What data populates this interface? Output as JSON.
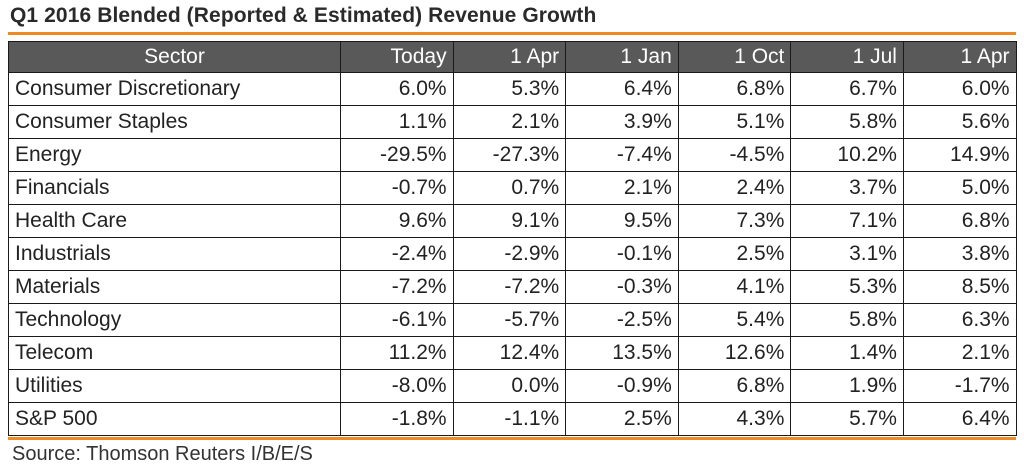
{
  "title": "Q1 2016 Blended (Reported & Estimated) Revenue Growth",
  "source": "Source: Thomson Reuters I/B/E/S",
  "colors": {
    "accent": "#f08a24",
    "header_bg": "#595959",
    "header_text": "#ffffff"
  },
  "chart_data": {
    "type": "table",
    "title": "Q1 2016 Blended (Reported & Estimated) Revenue Growth",
    "columns": [
      "Sector",
      "Today",
      "1 Apr",
      "1 Jan",
      "1 Oct",
      "1 Jul",
      "1 Apr"
    ],
    "rows": [
      [
        "Consumer Discretionary",
        "6.0%",
        "5.3%",
        "6.4%",
        "6.8%",
        "6.7%",
        "6.0%"
      ],
      [
        "Consumer Staples",
        "1.1%",
        "2.1%",
        "3.9%",
        "5.1%",
        "5.8%",
        "5.6%"
      ],
      [
        "Energy",
        "-29.5%",
        "-27.3%",
        "-7.4%",
        "-4.5%",
        "10.2%",
        "14.9%"
      ],
      [
        "Financials",
        "-0.7%",
        "0.7%",
        "2.1%",
        "2.4%",
        "3.7%",
        "5.0%"
      ],
      [
        "Health Care",
        "9.6%",
        "9.1%",
        "9.5%",
        "7.3%",
        "7.1%",
        "6.8%"
      ],
      [
        "Industrials",
        "-2.4%",
        "-2.9%",
        "-0.1%",
        "2.5%",
        "3.1%",
        "3.8%"
      ],
      [
        "Materials",
        "-7.2%",
        "-7.2%",
        "-0.3%",
        "4.1%",
        "5.3%",
        "8.5%"
      ],
      [
        "Technology",
        "-6.1%",
        "-5.7%",
        "-2.5%",
        "5.4%",
        "5.8%",
        "6.3%"
      ],
      [
        "Telecom",
        "11.2%",
        "12.4%",
        "13.5%",
        "12.6%",
        "1.4%",
        "2.1%"
      ],
      [
        "Utilities",
        "-8.0%",
        "0.0%",
        "-0.9%",
        "6.8%",
        "1.9%",
        "-1.7%"
      ],
      [
        "S&P 500",
        "-1.8%",
        "-1.1%",
        "2.5%",
        "4.3%",
        "5.7%",
        "6.4%"
      ]
    ]
  }
}
